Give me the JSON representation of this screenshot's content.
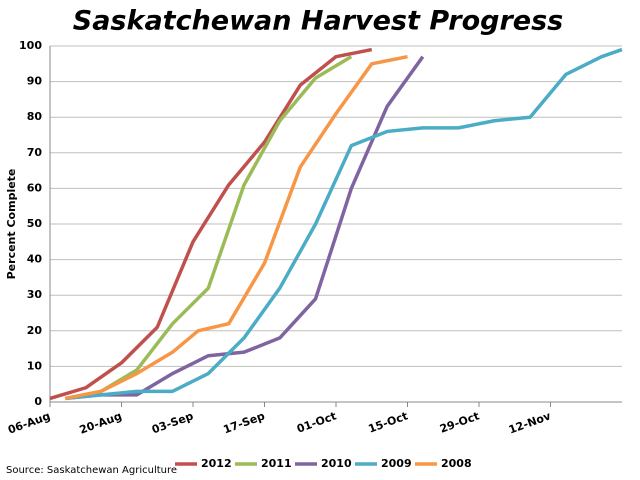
{
  "chart_data": {
    "type": "line",
    "title": "Saskatchewan Harvest Progress",
    "y_label": "Percent Complete",
    "source": "Source: Saskatchewan Agriculture",
    "xlim": [
      "06-Aug",
      "26-Nov"
    ],
    "xticks": [
      "06-Aug",
      "20-Aug",
      "03-Sep",
      "17-Sep",
      "01-Oct",
      "15-Oct",
      "29-Oct",
      "12-Nov"
    ],
    "ylim": [
      0,
      100
    ],
    "yticks": [
      0,
      10,
      20,
      30,
      40,
      50,
      60,
      70,
      80,
      90,
      100
    ],
    "grid": true,
    "legend": "bottom",
    "series": [
      {
        "name": "2012",
        "color": "#c0504d",
        "x": [
          "06-Aug",
          "13-Aug",
          "20-Aug",
          "27-Aug",
          "03-Sep",
          "10-Sep",
          "17-Sep",
          "24-Sep",
          "01-Oct",
          "08-Oct"
        ],
        "values": [
          1,
          4,
          11,
          21,
          45,
          61,
          73,
          89,
          97,
          99
        ]
      },
      {
        "name": "2011",
        "color": "#9bbb59",
        "x": [
          "09-Aug",
          "16-Aug",
          "23-Aug",
          "30-Aug",
          "06-Sep",
          "13-Sep",
          "20-Sep",
          "27-Sep",
          "04-Oct"
        ],
        "values": [
          1,
          3,
          9,
          22,
          32,
          61,
          79,
          91,
          97
        ]
      },
      {
        "name": "2010",
        "color": "#8064a2",
        "x": [
          "09-Aug",
          "16-Aug",
          "23-Aug",
          "30-Aug",
          "06-Sep",
          "13-Sep",
          "20-Sep",
          "27-Sep",
          "04-Oct",
          "11-Oct",
          "18-Oct"
        ],
        "values": [
          1,
          2,
          2,
          8,
          13,
          14,
          18,
          29,
          60,
          83,
          97
        ]
      },
      {
        "name": "2009",
        "color": "#4bacc6",
        "x": [
          "09-Aug",
          "16-Aug",
          "23-Aug",
          "30-Aug",
          "06-Sep",
          "13-Sep",
          "20-Sep",
          "27-Sep",
          "04-Oct",
          "11-Oct",
          "18-Oct",
          "25-Oct",
          "01-Nov",
          "08-Nov",
          "15-Nov",
          "22-Nov",
          "26-Nov"
        ],
        "values": [
          1,
          2,
          3,
          3,
          8,
          18,
          32,
          50,
          72,
          76,
          77,
          77,
          79,
          80,
          92,
          97,
          99
        ]
      },
      {
        "name": "2008",
        "color": "#f79646",
        "x": [
          "09-Aug",
          "16-Aug",
          "23-Aug",
          "30-Aug",
          "04-Sep",
          "10-Sep",
          "17-Sep",
          "24-Sep",
          "01-Oct",
          "08-Oct",
          "15-Oct"
        ],
        "values": [
          1,
          3,
          8,
          14,
          20,
          22,
          39,
          66,
          81,
          95,
          97
        ]
      }
    ]
  }
}
